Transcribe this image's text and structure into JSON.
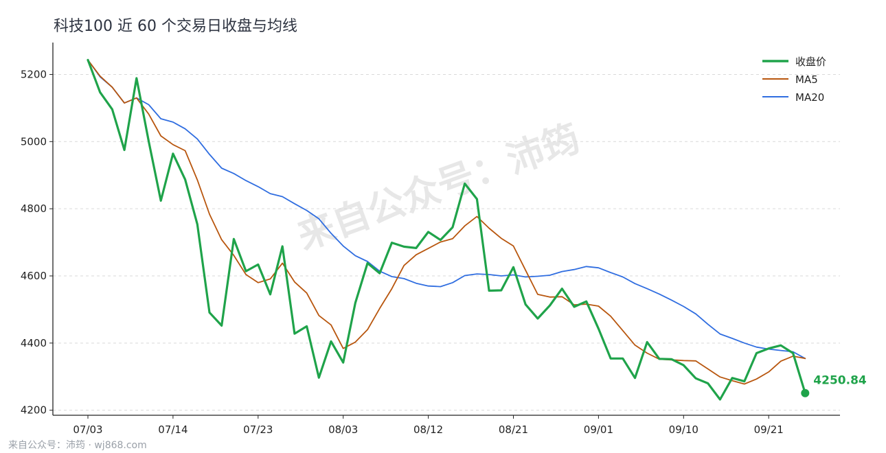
{
  "chart_data": {
    "type": "line",
    "title": "科技100 近 60 个交易日收盘与均线",
    "xlabel": "",
    "ylabel": "",
    "ylim": [
      4185,
      5295
    ],
    "yticks": [
      4200,
      4400,
      4600,
      4800,
      5000,
      5200
    ],
    "x_ticks": [
      "07/03",
      "07/14",
      "07/23",
      "08/03",
      "08/12",
      "08/21",
      "09/01",
      "09/10",
      "09/21"
    ],
    "x_tick_indices": [
      0,
      7,
      14,
      21,
      28,
      35,
      42,
      49,
      56
    ],
    "grid": "horizontal",
    "legend_position": "top-right",
    "series": [
      {
        "name": "收盘价",
        "color": "#1fa34a",
        "values": [
          5243,
          5147,
          5096,
          4975,
          5189,
          5001,
          4824,
          4964,
          4887,
          4754,
          4491,
          4452,
          4710,
          4614,
          4634,
          4545,
          4688,
          4428,
          4450,
          4297,
          4405,
          4342,
          4520,
          4638,
          4608,
          4699,
          4687,
          4683,
          4731,
          4707,
          4745,
          4875,
          4829,
          4556,
          4557,
          4626,
          4515,
          4473,
          4512,
          4562,
          4508,
          4524,
          4443,
          4354,
          4354,
          4296,
          4403,
          4353,
          4352,
          4334,
          4295,
          4280,
          4232,
          4296,
          4286,
          4370,
          4384,
          4393,
          4370,
          4251
        ]
      },
      {
        "name": "MA5",
        "color": "#b8560e",
        "values": [
          5243,
          5195,
          5162,
          5115,
          5130,
          5082,
          5017,
          4991,
          4973,
          4886,
          4784,
          4708,
          4661,
          4604,
          4580,
          4591,
          4638,
          4582,
          4549,
          4482,
          4454,
          4384,
          4403,
          4440,
          4503,
          4562,
          4631,
          4663,
          4682,
          4701,
          4711,
          4749,
          4777,
          4742,
          4712,
          4689,
          4617,
          4545,
          4537,
          4538,
          4514,
          4516,
          4510,
          4480,
          4437,
          4394,
          4370,
          4352,
          4350,
          4348,
          4347,
          4323,
          4299,
          4288,
          4278,
          4293,
          4314,
          4346,
          4361,
          4354
        ]
      },
      {
        "name": "MA20",
        "color": "#2f6de0",
        "values": [
          5243,
          5193,
          5162,
          5115,
          5130,
          5110,
          5068,
          5058,
          5038,
          5008,
          4962,
          4921,
          4905,
          4884,
          4866,
          4845,
          4836,
          4815,
          4795,
          4770,
          4727,
          4689,
          4660,
          4643,
          4614,
          4598,
          4592,
          4578,
          4570,
          4568,
          4580,
          4601,
          4606,
          4604,
          4600,
          4603,
          4597,
          4599,
          4602,
          4613,
          4619,
          4628,
          4624,
          4610,
          4597,
          4577,
          4562,
          4546,
          4528,
          4509,
          4487,
          4456,
          4427,
          4414,
          4400,
          4388,
          4382,
          4378,
          4374,
          4354
        ]
      }
    ],
    "last_value_label": "4250.84",
    "watermark": "来自公众号：沛筠"
  },
  "footer": {
    "text": "来自公众号：沛筠 · wj868.com"
  }
}
